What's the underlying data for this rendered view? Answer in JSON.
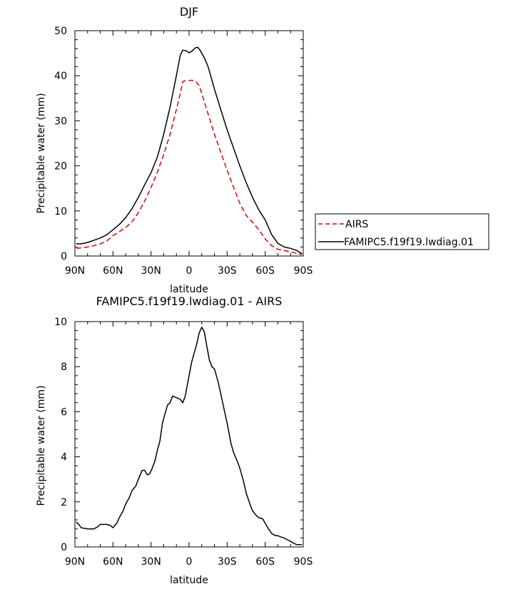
{
  "chart_data": [
    {
      "type": "line",
      "title": "DJF",
      "xlabel": "latitude",
      "ylabel": "Precipitable water (mm)",
      "xlim": [
        90,
        -90
      ],
      "ylim": [
        0,
        50
      ],
      "xticks": [
        90,
        60,
        30,
        0,
        -30,
        -60,
        -90
      ],
      "xtick_labels": [
        "90N",
        "60N",
        "30N",
        "0",
        "30S",
        "60S",
        "90S"
      ],
      "yticks": [
        0,
        10,
        20,
        30,
        40,
        50
      ],
      "ytick_labels": [
        "0",
        "10",
        "20",
        "30",
        "40",
        "50"
      ],
      "legend": {
        "placement": "right",
        "entries": [
          "AIRS",
          "FAMIPC5.f19f19.lwdiag.01"
        ]
      },
      "series": [
        {
          "name": "AIRS",
          "color": "#e00000",
          "dash": true,
          "x": [
            89,
            85,
            80,
            75,
            70,
            65,
            60,
            55,
            50,
            45,
            40,
            35,
            30,
            25,
            20,
            15,
            10,
            7,
            5,
            2,
            0,
            -2,
            -5,
            -8,
            -10,
            -15,
            -20,
            -25,
            -30,
            -35,
            -40,
            -45,
            -50,
            -55,
            -60,
            -65,
            -70,
            -75,
            -80,
            -85,
            -89
          ],
          "values": [
            1.7,
            1.8,
            2.0,
            2.3,
            2.7,
            3.3,
            4.5,
            5.4,
            6.3,
            7.6,
            9.6,
            12.2,
            15.2,
            18.6,
            22.5,
            27.0,
            32.5,
            36.0,
            38.7,
            39.0,
            38.9,
            39.0,
            38.8,
            37.8,
            36.0,
            31.5,
            27.0,
            23.0,
            19.0,
            15.3,
            11.7,
            9.0,
            7.5,
            5.8,
            3.8,
            2.3,
            1.5,
            1.2,
            0.9,
            0.6,
            0.3
          ]
        },
        {
          "name": "FAMIPC5.f19f19.lwdiag.01",
          "color": "#000000",
          "dash": false,
          "x": [
            89,
            85,
            80,
            75,
            70,
            65,
            60,
            55,
            50,
            45,
            40,
            35,
            30,
            25,
            20,
            15,
            10,
            7,
            5,
            2,
            0,
            -2,
            -5,
            -7,
            -9,
            -12,
            -15,
            -20,
            -25,
            -30,
            -35,
            -40,
            -45,
            -50,
            -55,
            -60,
            -65,
            -70,
            -75,
            -80,
            -85,
            -89
          ],
          "values": [
            2.7,
            2.7,
            3.0,
            3.5,
            4.0,
            4.7,
            5.8,
            7.0,
            8.5,
            10.5,
            13.0,
            15.8,
            18.5,
            22.0,
            27.0,
            33.0,
            40.0,
            44.5,
            45.7,
            45.5,
            45.1,
            45.4,
            46.2,
            46.3,
            45.5,
            44.0,
            42.0,
            37.0,
            32.5,
            28.0,
            24.0,
            20.0,
            16.3,
            13.0,
            10.2,
            8.0,
            4.8,
            2.8,
            2.0,
            1.7,
            1.2,
            0.5
          ]
        }
      ]
    },
    {
      "type": "line",
      "title": "FAMIPC5.f19f19.lwdiag.01 - AIRS",
      "xlabel": "latitude",
      "ylabel": "Precipitable water (mm)",
      "xlim": [
        90,
        -90
      ],
      "ylim": [
        0,
        10
      ],
      "xticks": [
        90,
        60,
        30,
        0,
        -30,
        -60,
        -90
      ],
      "xtick_labels": [
        "90N",
        "60N",
        "30N",
        "0",
        "30S",
        "60S",
        "90S"
      ],
      "yticks": [
        0,
        2,
        4,
        6,
        8,
        10
      ],
      "ytick_labels": [
        "0",
        "2",
        "4",
        "6",
        "8",
        "10"
      ],
      "series": [
        {
          "name": "FAMIPC5.f19f19.lwdiag.01 - AIRS",
          "color": "#000000",
          "dash": false,
          "x": [
            89,
            87,
            85,
            80,
            75,
            72,
            70,
            67,
            65,
            62,
            60,
            57,
            55,
            52,
            50,
            47,
            45,
            42,
            40,
            37,
            35,
            33,
            31,
            29,
            27,
            25,
            23,
            21,
            19,
            17,
            15,
            13,
            11,
            9,
            7,
            5,
            3,
            2,
            0,
            -2,
            -4,
            -6,
            -8,
            -10,
            -12,
            -14,
            -15,
            -16,
            -18,
            -20,
            -23,
            -25,
            -28,
            -30,
            -33,
            -35,
            -38,
            -40,
            -43,
            -45,
            -48,
            -50,
            -53,
            -55,
            -58,
            -60,
            -62,
            -65,
            -68,
            -70,
            -72,
            -75,
            -78,
            -80,
            -83,
            -85,
            -87,
            -89
          ],
          "values": [
            1.1,
            1.0,
            0.85,
            0.8,
            0.8,
            0.9,
            1.0,
            1.0,
            1.0,
            0.95,
            0.85,
            1.05,
            1.3,
            1.6,
            1.9,
            2.2,
            2.5,
            2.7,
            3.0,
            3.4,
            3.4,
            3.2,
            3.25,
            3.5,
            3.8,
            4.3,
            4.7,
            5.5,
            5.9,
            6.3,
            6.4,
            6.7,
            6.65,
            6.6,
            6.55,
            6.4,
            6.7,
            7.0,
            7.6,
            8.2,
            8.6,
            9.0,
            9.5,
            9.75,
            9.55,
            8.9,
            8.6,
            8.3,
            8.0,
            7.9,
            7.3,
            6.8,
            6.0,
            5.5,
            4.6,
            4.2,
            3.8,
            3.5,
            2.9,
            2.4,
            1.9,
            1.6,
            1.4,
            1.3,
            1.25,
            1.05,
            0.85,
            0.6,
            0.5,
            0.5,
            0.45,
            0.4,
            0.3,
            0.25,
            0.15,
            0.1,
            0.1,
            0.1
          ]
        }
      ]
    }
  ]
}
